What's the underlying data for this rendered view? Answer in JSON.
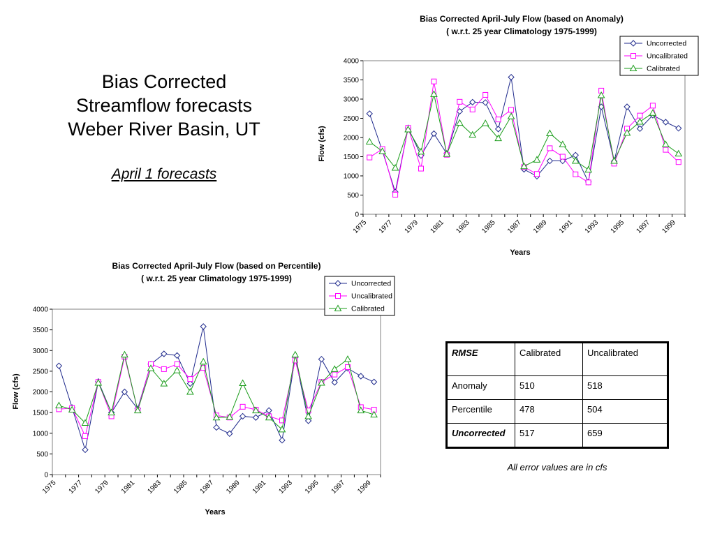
{
  "slide": {
    "title_lines": [
      "Bias Corrected",
      "Streamflow forecasts",
      "Weber River Basin, UT"
    ],
    "subtitle": "April 1 forecasts"
  },
  "colors": {
    "uncorrected": "#1f2a8c",
    "uncalibrated": "#ff00ff",
    "calibrated": "#1a9c1a"
  },
  "chart_data": [
    {
      "type": "line",
      "title": "Bias Corrected April-July Flow (based on Anomaly)",
      "subtitle": "( w.r.t. 25 year Climatology 1975-1999)",
      "xlabel": "Years",
      "ylabel": "Flow (cfs)",
      "ylim": [
        0,
        4000
      ],
      "yticks": [
        "0",
        "500",
        "1000",
        "1500",
        "2000",
        "2500",
        "3000",
        "3500",
        "4000"
      ],
      "xticks": [
        "1975",
        "1977",
        "1979",
        "1981",
        "1983",
        "1985",
        "1987",
        "1989",
        "1991",
        "1993",
        "1995",
        "1997",
        "1999"
      ],
      "legend": "top-right",
      "x": [
        1975,
        1976,
        1977,
        1978,
        1979,
        1980,
        1981,
        1982,
        1983,
        1984,
        1985,
        1986,
        1987,
        1988,
        1989,
        1990,
        1991,
        1992,
        1993,
        1994,
        1995,
        1996,
        1997,
        1998,
        1999
      ],
      "series": [
        {
          "name": "Uncorrected",
          "marker": "diamond",
          "color": "#1f2a8c",
          "values": [
            2620,
            1650,
            580,
            2250,
            1530,
            2100,
            1580,
            2680,
            2920,
            2910,
            2220,
            3570,
            1170,
            990,
            1390,
            1390,
            1540,
            840,
            2800,
            1380,
            2800,
            2230,
            2580,
            2400,
            2240
          ]
        },
        {
          "name": "Uncalibrated",
          "marker": "square",
          "color": "#ff00ff",
          "values": [
            1480,
            1700,
            510,
            2250,
            1190,
            3460,
            1550,
            2930,
            2730,
            3110,
            2470,
            2720,
            1230,
            1050,
            1720,
            1500,
            1040,
            830,
            3220,
            1320,
            2230,
            2570,
            2830,
            1680,
            1360
          ]
        },
        {
          "name": "Calibrated",
          "marker": "triangle",
          "color": "#1a9c1a",
          "values": [
            1890,
            1640,
            1210,
            2210,
            1630,
            3130,
            1570,
            2380,
            2070,
            2370,
            1980,
            2550,
            1250,
            1420,
            2110,
            1820,
            1390,
            1160,
            3100,
            1390,
            2120,
            2410,
            2640,
            1820,
            1580
          ]
        }
      ]
    },
    {
      "type": "line",
      "title": "Bias Corrected April-July Flow (based on Percentile)",
      "subtitle": "( w.r.t. 25 year Climatology 1975-1999)",
      "xlabel": "Years",
      "ylabel": "Flow (cfs)",
      "ylim": [
        0,
        4000
      ],
      "yticks": [
        "0",
        "500",
        "1000",
        "1500",
        "2000",
        "2500",
        "3000",
        "3500",
        "4000"
      ],
      "xticks": [
        "1975",
        "1977",
        "1979",
        "1981",
        "1983",
        "1985",
        "1987",
        "1989",
        "1991",
        "1993",
        "1995",
        "1997",
        "1999"
      ],
      "legend": "top-right",
      "x": [
        1975,
        1976,
        1977,
        1978,
        1979,
        1980,
        1981,
        1982,
        1983,
        1984,
        1985,
        1986,
        1987,
        1988,
        1989,
        1990,
        1991,
        1992,
        1993,
        1994,
        1995,
        1996,
        1997,
        1998,
        1999
      ],
      "series": [
        {
          "name": "Uncorrected",
          "marker": "diamond",
          "color": "#1f2a8c",
          "values": [
            2630,
            1620,
            600,
            2250,
            1500,
            2000,
            1590,
            2670,
            2920,
            2880,
            2200,
            3580,
            1140,
            990,
            1410,
            1380,
            1550,
            830,
            2840,
            1300,
            2790,
            2230,
            2570,
            2380,
            2240
          ]
        },
        {
          "name": "Uncalibrated",
          "marker": "square",
          "color": "#ff00ff",
          "values": [
            1580,
            1610,
            930,
            2240,
            1410,
            2850,
            1560,
            2670,
            2550,
            2670,
            2310,
            2580,
            1430,
            1380,
            1640,
            1570,
            1410,
            1310,
            2760,
            1550,
            2240,
            2420,
            2600,
            1630,
            1570
          ]
        },
        {
          "name": "Calibrated",
          "marker": "triangle",
          "color": "#1a9c1a",
          "values": [
            1670,
            1570,
            1250,
            2220,
            1500,
            2900,
            1550,
            2570,
            2200,
            2520,
            2000,
            2730,
            1380,
            1390,
            2210,
            1550,
            1380,
            1090,
            2900,
            1410,
            2220,
            2550,
            2790,
            1550,
            1450
          ]
        }
      ]
    }
  ],
  "rmse_table": {
    "header": [
      "RMSE",
      "Calibrated",
      "Uncalibrated"
    ],
    "rows": [
      [
        "Anomaly",
        "510",
        "518"
      ],
      [
        "Percentile",
        "478",
        "504"
      ],
      [
        "Uncorrected",
        "517",
        "659"
      ]
    ]
  },
  "note": "All error values are in cfs"
}
